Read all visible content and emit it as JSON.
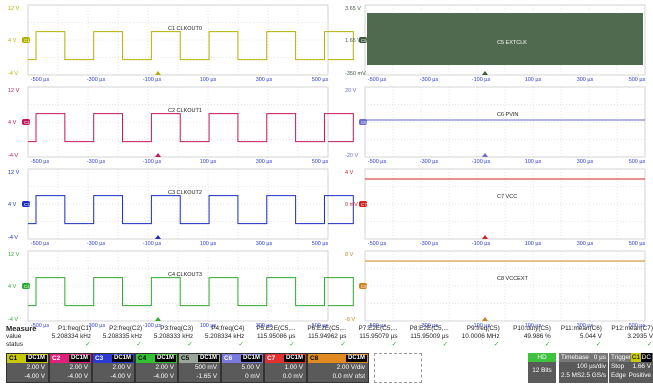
{
  "left_panels": [
    {
      "ch": "C1",
      "color": "#b5b000",
      "ticks": [
        "12 V",
        "4 V",
        "-4 V"
      ],
      "label": "C1 CLKOUT0",
      "times": [
        "-500 µs",
        "-300 µs",
        "-100 µs",
        "100 µs",
        "300 µs",
        "500 µs"
      ],
      "high": 0.62,
      "low": 0.22
    },
    {
      "ch": "C2",
      "color": "#c2185b",
      "ticks": [
        "12 V",
        "4 V",
        "-4 V"
      ],
      "label": "C2 CLKOUT1",
      "times": [
        "-500 µs",
        "-300 µs",
        "-100 µs",
        "100 µs",
        "300 µs",
        "500 µs"
      ],
      "high": 0.62,
      "low": 0.22
    },
    {
      "ch": "C3",
      "color": "#1a2fc0",
      "ticks": [
        "12 V",
        "4 V",
        "-4 V"
      ],
      "label": "C3 CLKOUT2",
      "times": [
        "-500 µs",
        "-300 µs",
        "-100 µs",
        "100 µs",
        "300 µs",
        "500 µs"
      ],
      "high": 0.62,
      "low": 0.22
    },
    {
      "ch": "C4",
      "color": "#2eaa2e",
      "ticks": [
        "12 V",
        "4 V",
        "-4 V"
      ],
      "label": "C4 CLKOUT3",
      "times": [
        "-500 µs",
        "-300 µs",
        "-100 µs",
        "100 µs",
        "300 µs",
        "500 µs"
      ],
      "high": 0.62,
      "low": 0.22
    }
  ],
  "right_panels": [
    {
      "ch": "C5",
      "color": "#3d5a3d",
      "ticks": [
        "3.65 V",
        "1.65 V",
        "-350 mV"
      ],
      "label": "C5 EXTCLK",
      "times": [
        "-500 µs",
        "-300 µs",
        "-100 µs",
        "100 µs",
        "300 µs",
        "500 µs"
      ]
    },
    {
      "ch": "C6",
      "color": "#6a6ad0",
      "ticks": [
        "20 V",
        "",
        "-20 V"
      ],
      "label": "C6 PVIN",
      "times": [
        "-500 µs",
        "-300 µs",
        "-100 µs",
        "100 µs",
        "300 µs",
        "500 µs"
      ]
    },
    {
      "ch": "C7",
      "color": "#d32020",
      "ticks": [
        "4 V",
        "0 mV",
        ""
      ],
      "label": "C7 VCC",
      "times": [
        "-500 µs",
        "-300 µs",
        "-100 µs",
        "100 µs",
        "300 µs",
        "500 µs"
      ]
    },
    {
      "ch": "C8",
      "color": "#d08020",
      "ticks": [
        "8 V",
        "",
        "-8 V"
      ],
      "label": "C8 VCCEXT",
      "times": [
        "-500 µs",
        "-300 µs",
        "-100 µs",
        "100 µs",
        "300 µs",
        "500 µs"
      ]
    }
  ],
  "measure": {
    "title": "Measure",
    "row_labels": [
      "value",
      "status"
    ],
    "columns": [
      {
        "name": "P1:freq(C1)",
        "value": "5.208334 kHz"
      },
      {
        "name": "P2:freq(C2)",
        "value": "5.208335 kHz"
      },
      {
        "name": "P3:freq(C3)",
        "value": "5.208333 kHz"
      },
      {
        "name": "P4:freq(C4)",
        "value": "5.208334 kHz"
      },
      {
        "name": "P5:E2E(C5,...",
        "value": "115.95086 µs"
      },
      {
        "name": "P6:E2E(C5,...",
        "value": "115.94962 µs"
      },
      {
        "name": "P7:E2E(C5,...",
        "value": "115.95079 µs"
      },
      {
        "name": "P8:E2E(C5,...",
        "value": "115.95009 µs"
      },
      {
        "name": "P9:freq(C5)",
        "value": "10.0006 MHz"
      },
      {
        "name": "P10:duty(C5)",
        "value": "49.986 %"
      },
      {
        "name": "P11:mean(C6)",
        "value": "5.044 V"
      },
      {
        "name": "P12:mean(C7)",
        "value": "3.2935 V"
      }
    ]
  },
  "channels": [
    {
      "name": "C1",
      "tag": "DC1M",
      "color": "#c8c800",
      "text": "#000",
      "v1": "2.00 V",
      "v2": "-4.00 V"
    },
    {
      "name": "C2",
      "tag": "DC1M",
      "color": "#e0207a",
      "text": "#fff",
      "v1": "2.00 V",
      "v2": "-4.00 V"
    },
    {
      "name": "C3",
      "tag": "DC1M",
      "color": "#2b3bd8",
      "text": "#fff",
      "v1": "2.00 V",
      "v2": "-4.00 V"
    },
    {
      "name": "C4",
      "tag": "DC1M",
      "color": "#33c033",
      "text": "#000",
      "v1": "2.00 V",
      "v2": "-4.00 V"
    },
    {
      "name": "C5",
      "tag": "DC1M",
      "color": "#9aa69a",
      "text": "#000",
      "v1": "500 mV",
      "v2": "-1.65 V"
    },
    {
      "name": "C6",
      "tag": "DC1M",
      "color": "#7a7ae0",
      "text": "#fff",
      "v1": "5.00 V",
      "v2": "0 mV"
    },
    {
      "name": "C7",
      "tag": "DC1M",
      "color": "#e03030",
      "text": "#fff",
      "v1": "1.00 V",
      "v2": "0.0 mV"
    },
    {
      "name": "C8",
      "tag": "DC1M",
      "color": "#e08a20",
      "text": "#000",
      "v1": "2.00 V/div",
      "v2": "0.0 mV ofst"
    }
  ],
  "hd": {
    "title": "HD",
    "bits": "12 Bits"
  },
  "timebase": {
    "title": "Timebase",
    "offset": "0 µs",
    "div": "100 µs/div",
    "samples": "2.5 MS",
    "rate": "2.5 GS/s"
  },
  "trigger": {
    "title": "Trigger",
    "src": "C1",
    "coupling": "DC",
    "mode": "Stop",
    "level": "1.66 V",
    "type": "Edge",
    "slope": "Positive"
  }
}
